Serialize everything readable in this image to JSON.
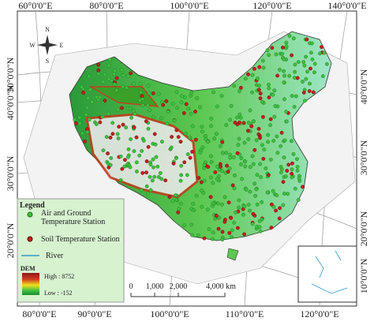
{
  "grid_labels": {
    "top": [
      "60°0'0\"E",
      "80°0'0\"E",
      "100°0'0\"E",
      "120°0'0\"E",
      "140°0'0\"E"
    ],
    "bottom": [
      "80°0'0\"E",
      "90°0'0\"E",
      "100°0'0\"E",
      "110°0'0\"E",
      "120°0'0\"E"
    ],
    "left": [
      "50°0'0\"N",
      "40°0'0\"N",
      "30°0'0\"N",
      "20°0'0\"N"
    ],
    "right": [
      "40°0'0\"N",
      "30°0'0\"N",
      "20°0'0\"N",
      "10°0'0\"N"
    ]
  },
  "compass": {
    "north": "N",
    "south": "S",
    "east": "E",
    "west": "W"
  },
  "legend": {
    "title": "Legend",
    "air_ground": "Air and Ground Temperature Station",
    "soil": "Soil Temperature Station",
    "river": "River",
    "dem_title": "DEM",
    "high": "High : 8752",
    "low": "Low : -152"
  },
  "scale_bar": {
    "labels": [
      "0",
      "1,000",
      "2,000",
      "4,000 km"
    ]
  }
}
